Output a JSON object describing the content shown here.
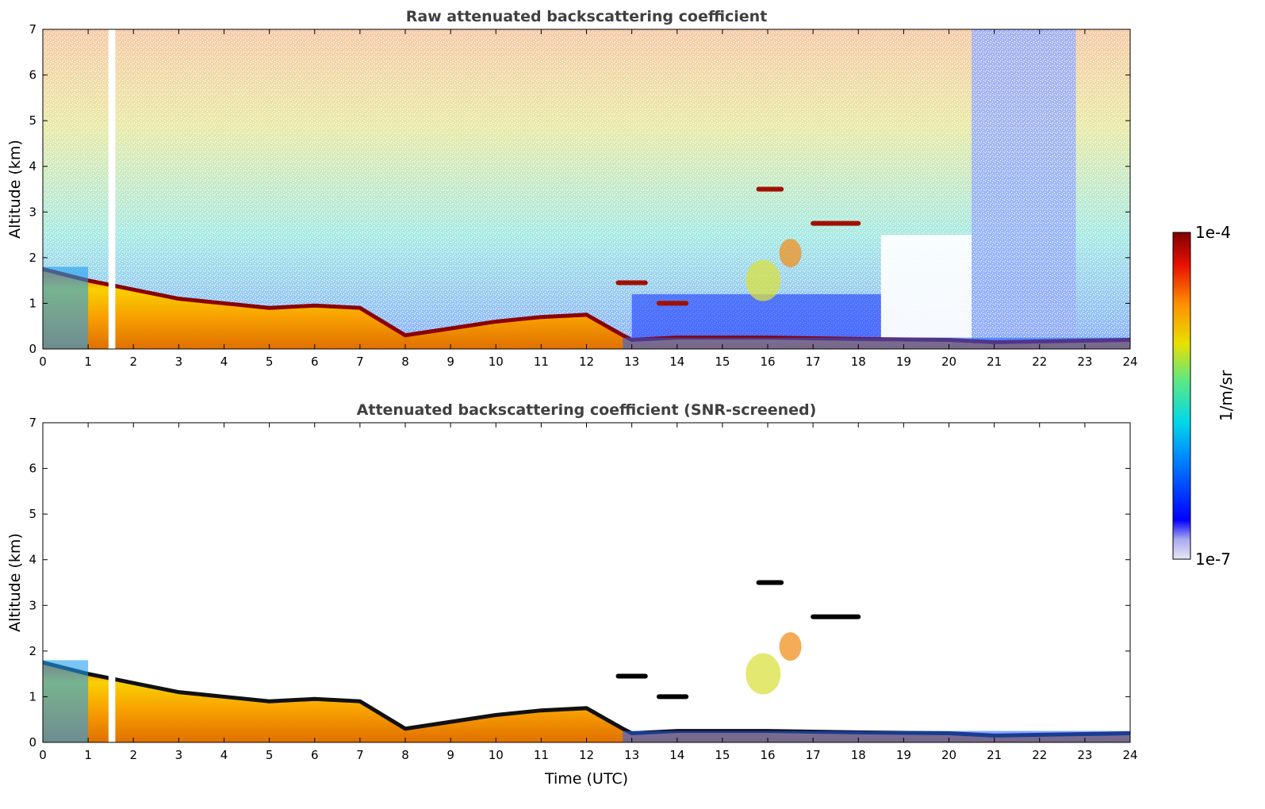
{
  "chart_data": [
    {
      "type": "heatmap",
      "title": "Raw attenuated backscattering coefficient",
      "xlabel": "",
      "ylabel": "Altitude (km)",
      "xlim": [
        0,
        24
      ],
      "ylim": [
        0,
        7
      ],
      "xticks": [
        "0",
        "1",
        "2",
        "3",
        "4",
        "5",
        "6",
        "7",
        "8",
        "9",
        "10",
        "11",
        "12",
        "13",
        "14",
        "15",
        "16",
        "17",
        "18",
        "19",
        "20",
        "21",
        "22",
        "23",
        "24"
      ],
      "yticks": [
        "0",
        "1",
        "2",
        "3",
        "4",
        "5",
        "6",
        "7"
      ],
      "features": {
        "boundary_layer_top_km": [
          [
            0,
            1.75
          ],
          [
            1,
            1.5
          ],
          [
            2,
            1.3
          ],
          [
            3,
            1.1
          ],
          [
            4,
            1.0
          ],
          [
            5,
            0.9
          ],
          [
            6,
            0.95
          ],
          [
            7,
            0.9
          ],
          [
            8,
            0.3
          ],
          [
            9,
            0.45
          ],
          [
            10,
            0.6
          ],
          [
            11,
            0.7
          ],
          [
            12,
            0.75
          ],
          [
            12.8,
            0.3
          ],
          [
            13,
            0.2
          ],
          [
            14,
            0.25
          ],
          [
            16,
            0.25
          ],
          [
            18,
            0.22
          ],
          [
            20,
            0.2
          ],
          [
            21,
            0.15
          ],
          [
            24,
            0.2
          ]
        ],
        "elevated_layers": [
          {
            "x": [
              12.7,
              13.3
            ],
            "y_km": 1.45
          },
          {
            "x": [
              13.6,
              14.2
            ],
            "y_km": 1.0
          },
          {
            "x": [
              15.8,
              16.3
            ],
            "y_km": 3.5
          },
          {
            "x": [
              17.0,
              18.0
            ],
            "y_km": 2.75
          }
        ],
        "missing_data_gap_utc": [
          1.45,
          1.6
        ]
      }
    },
    {
      "type": "heatmap",
      "title": "Attenuated backscattering coefficient (SNR-screened)",
      "xlabel": "Time (UTC)",
      "ylabel": "Altitude (km)",
      "xlim": [
        0,
        24
      ],
      "ylim": [
        0,
        7
      ],
      "xticks": [
        "0",
        "1",
        "2",
        "3",
        "4",
        "5",
        "6",
        "7",
        "8",
        "9",
        "10",
        "11",
        "12",
        "13",
        "14",
        "15",
        "16",
        "17",
        "18",
        "19",
        "20",
        "21",
        "22",
        "23",
        "24"
      ],
      "yticks": [
        "0",
        "1",
        "2",
        "3",
        "4",
        "5",
        "6",
        "7"
      ]
    }
  ],
  "colorbar": {
    "max_label": "1e-4",
    "min_label": "1e-7",
    "unit_label": "1/m/sr",
    "scale": "log",
    "range": [
      1e-07,
      0.0001
    ]
  }
}
